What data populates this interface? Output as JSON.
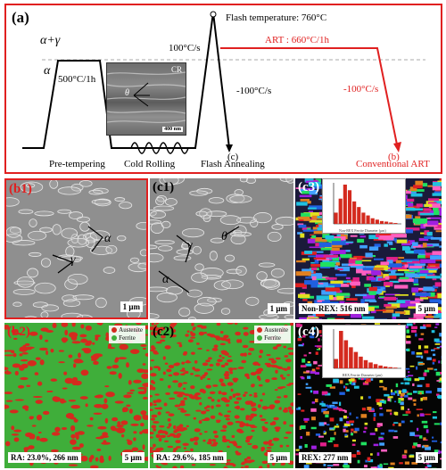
{
  "schematic": {
    "label": "(a)",
    "phase_region_upper": "α+γ",
    "phase_region_lower": "α",
    "flash_temperature": "Flash temperature: 760°C",
    "pretemper_hold": "500°C/1h",
    "heating_rate": "100°C/s",
    "art_hold": "ART : 660°C/1h",
    "cooling_rate_flash": "-100°C/s",
    "cooling_rate_art": "-100°C/s",
    "marker_c": "(c)",
    "marker_b": "(b)",
    "inset_label": "CR",
    "inset_theta": "θ",
    "inset_scale": "400 nm",
    "steps": [
      "Pre-tempering",
      "Cold Rolling",
      "Flash Annealing",
      "Conventional ART"
    ]
  },
  "panels": {
    "b1": {
      "tag": "(b1)",
      "alpha": "α",
      "gamma": "γ",
      "scale": "1 μm"
    },
    "c1": {
      "tag": "(c1)",
      "gamma": "γ",
      "theta": "θ",
      "alpha": "α",
      "scale": "1 μm"
    },
    "c3": {
      "tag": "(c3)",
      "caption": "Non-REX: 516 nm",
      "scale": "5 μm",
      "hist_xlabel": "Non-REX Ferrite Diameter (μm)",
      "hist_ylabel": "Number Fraction"
    },
    "b2": {
      "tag": "(b2)",
      "caption": "RA: 23.0%, 266 nm",
      "scale": "5 μm"
    },
    "c2": {
      "tag": "(c2)",
      "caption": "RA: 29.6%, 185 nm",
      "scale": "5 μm"
    },
    "c4": {
      "tag": "(c4)",
      "caption": "REX: 277 nm",
      "scale": "5 μm",
      "hist_xlabel": "REX Ferrite Diameter (μm)",
      "hist_ylabel": "Number Fraction"
    }
  },
  "phase_legend": {
    "austenite": "Austenite",
    "ferrite": "Ferrite"
  },
  "colors": {
    "frame_red": "#e02020",
    "austenite": "#d42a1e",
    "ferrite": "#3fae3a",
    "curve": "#000000",
    "art_curve": "#e02020"
  },
  "histograms": {
    "c3_non_rex": [
      0.04,
      0.09,
      0.14,
      0.12,
      0.08,
      0.06,
      0.04,
      0.03,
      0.02,
      0.015,
      0.01,
      0.008,
      0.005,
      0.003
    ],
    "c4_rex": [
      0.04,
      0.16,
      0.12,
      0.09,
      0.07,
      0.05,
      0.035,
      0.025,
      0.018,
      0.012,
      0.008,
      0.005,
      0.003
    ]
  }
}
